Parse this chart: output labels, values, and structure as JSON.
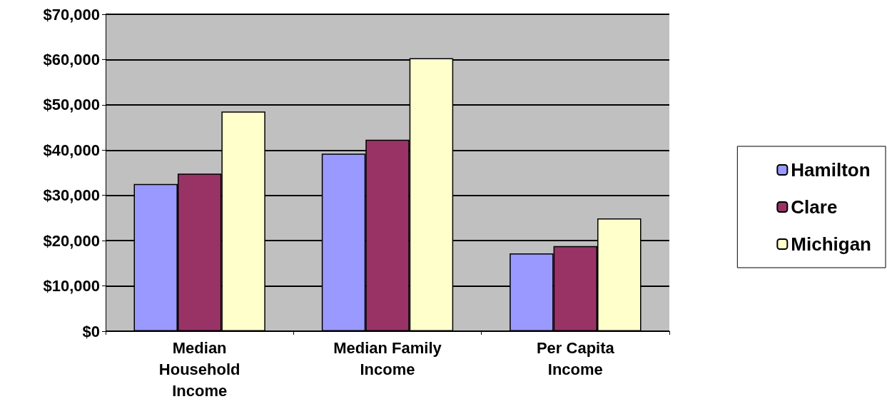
{
  "chart_data": {
    "type": "bar",
    "categories": [
      "Median Household Income",
      "Median Family Income",
      "Per Capita Income"
    ],
    "series": [
      {
        "name": "Hamilton",
        "color": "#9999ff",
        "values": [
          32500,
          39200,
          17200
        ]
      },
      {
        "name": "Clare",
        "color": "#993366",
        "values": [
          34800,
          42300,
          18800
        ]
      },
      {
        "name": "Michigan",
        "color": "#ffffcc",
        "values": [
          48500,
          60300,
          24900
        ]
      }
    ],
    "ylim": [
      0,
      70000
    ],
    "yticks": [
      {
        "value": 0,
        "label": "$0"
      },
      {
        "value": 10000,
        "label": "$10,000"
      },
      {
        "value": 20000,
        "label": "$20,000"
      },
      {
        "value": 30000,
        "label": "$30,000"
      },
      {
        "value": 40000,
        "label": "$40,000"
      },
      {
        "value": 50000,
        "label": "$50,000"
      },
      {
        "value": 60000,
        "label": "$60,000"
      },
      {
        "value": 70000,
        "label": "$70,000"
      }
    ],
    "grid": "y",
    "legend": "right"
  }
}
